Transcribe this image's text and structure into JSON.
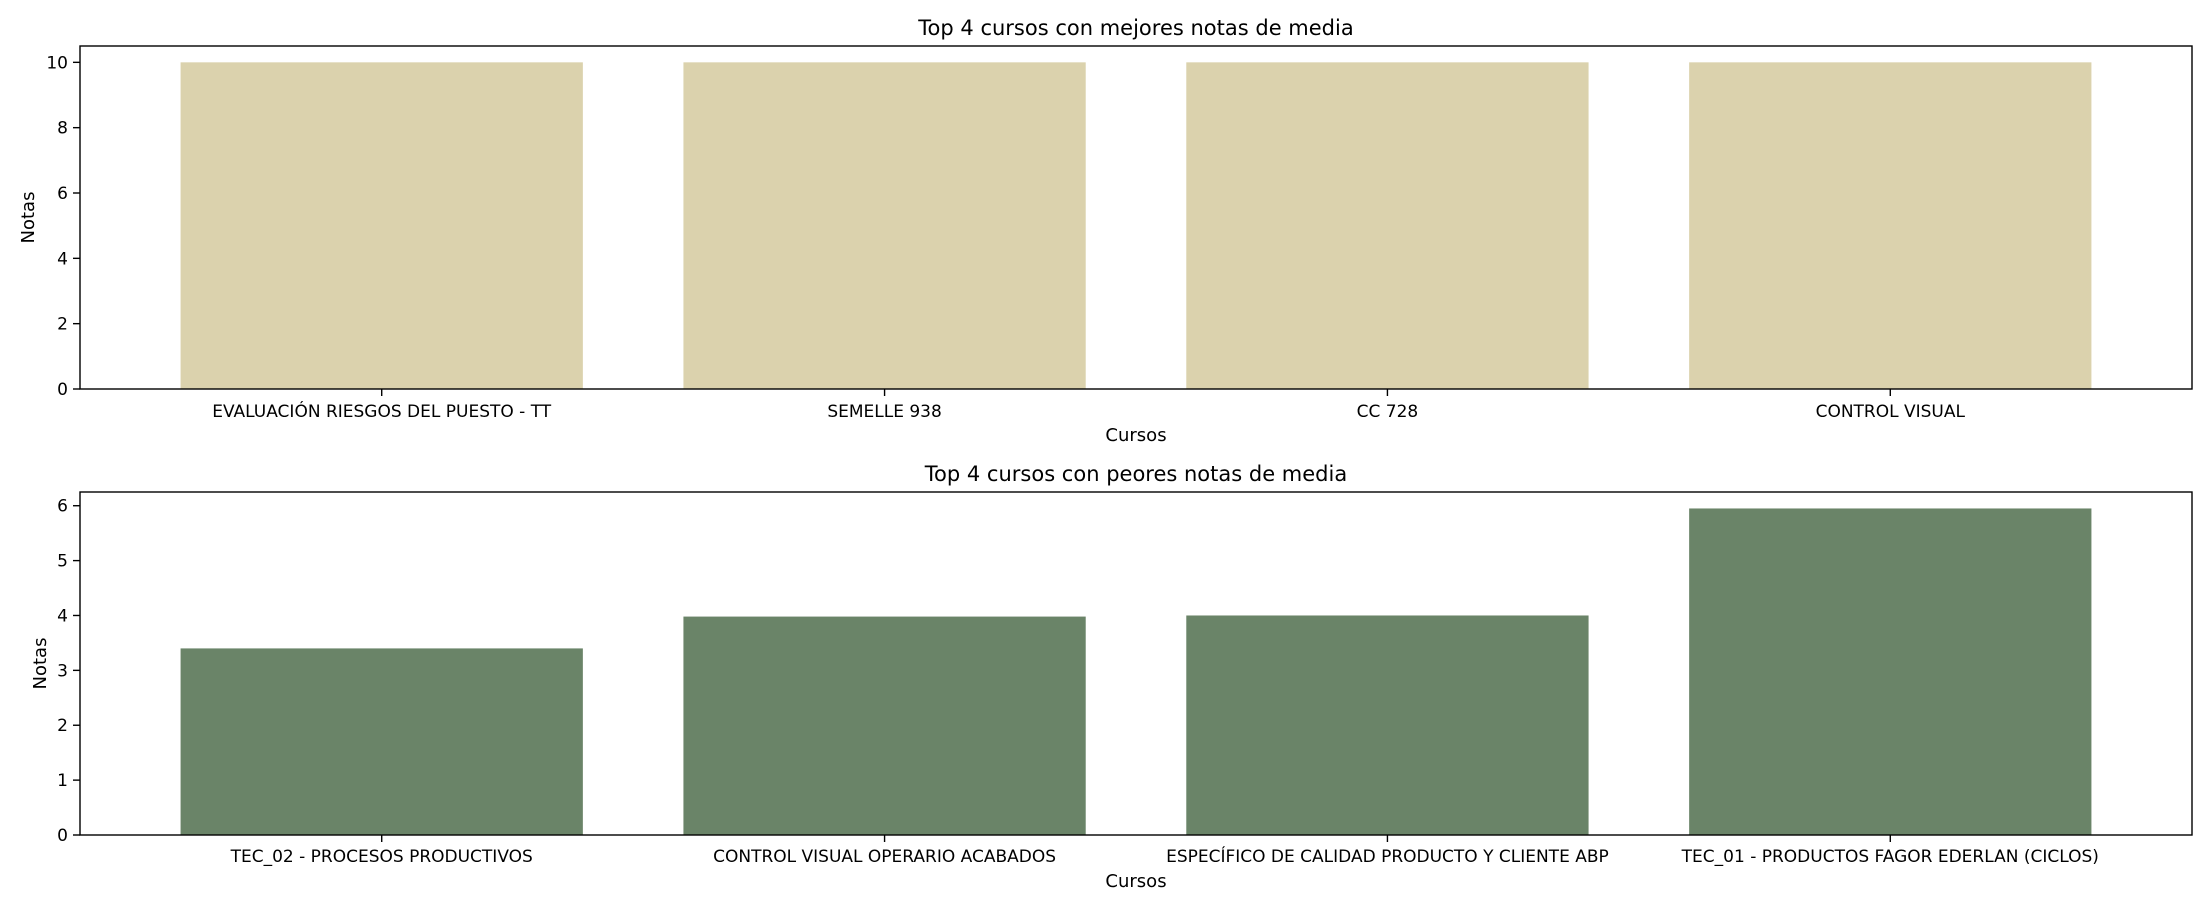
{
  "chart_data": [
    {
      "type": "bar",
      "title": "Top 4 cursos con mejores notas de media",
      "xlabel": "Cursos",
      "ylabel": "Notas",
      "categories": [
        "EVALUACIÓN RIESGOS DEL PUESTO - TT",
        "SEMELLE 938",
        "CC 728",
        "CONTROL VISUAL"
      ],
      "values": [
        10,
        10,
        10,
        10
      ],
      "ylim": [
        0,
        10.5
      ],
      "yticks": [
        0,
        2,
        4,
        6,
        8,
        10
      ],
      "color": "#dbd2ad",
      "grid": false
    },
    {
      "type": "bar",
      "title": "Top 4 cursos con peores notas de media",
      "xlabel": "Cursos",
      "ylabel": "Notas",
      "categories": [
        "TEC_02 - PROCESOS PRODUCTIVOS",
        "CONTROL VISUAL OPERARIO ACABADOS",
        "ESPECÍFICO DE CALIDAD PRODUCTO Y CLIENTE ABP",
        "TEC_01 - PRODUCTOS FAGOR EDERLAN (CICLOS)"
      ],
      "values": [
        3.4,
        3.98,
        4.0,
        5.95
      ],
      "ylim": [
        0,
        6.25
      ],
      "yticks": [
        0,
        1,
        2,
        3,
        4,
        5,
        6
      ],
      "color": "#6a8468",
      "grid": false
    }
  ]
}
